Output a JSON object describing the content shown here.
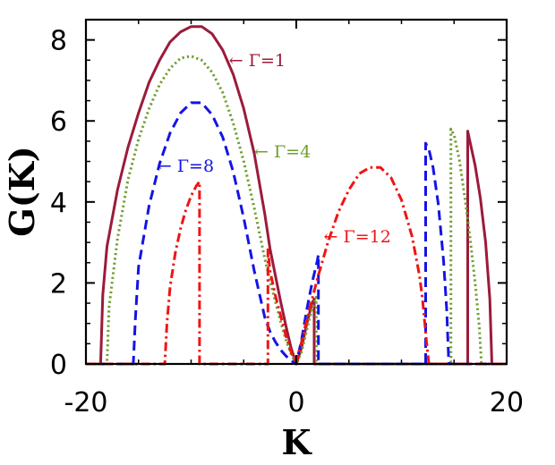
{
  "chart_data": {
    "type": "line",
    "xlabel": "K",
    "ylabel": "G(K)",
    "xlim": [
      -20,
      20
    ],
    "ylim": [
      0,
      8.5
    ],
    "x_ticks": [
      -20,
      0,
      20
    ],
    "x_tick_labels": [
      "-20",
      "0",
      "20"
    ],
    "y_ticks": [
      0,
      2,
      4,
      6,
      8
    ],
    "y_tick_labels": [
      "0",
      "2",
      "4",
      "6",
      "8"
    ],
    "grid": false,
    "legend": "none",
    "series": [
      {
        "name": "Γ=1",
        "color": "#9B1B3A",
        "style": "solid",
        "x": [
          -20,
          -18.6,
          -18.4,
          -18,
          -17,
          -16,
          -15,
          -14,
          -13,
          -12,
          -11,
          -10,
          -9,
          -8,
          -7,
          -6,
          -5,
          -4,
          -3,
          -2.5,
          -2,
          -1.5,
          -1,
          -0.5,
          0,
          0.5,
          1,
          1.5,
          1.7,
          1.7,
          2,
          3,
          6,
          10,
          15,
          16.3,
          16.3,
          16.5,
          17,
          17.5,
          18,
          18.4,
          18.6,
          20
        ],
        "y": [
          0,
          0,
          1.7,
          2.9,
          4.3,
          5.35,
          6.2,
          6.95,
          7.5,
          7.95,
          8.2,
          8.33,
          8.33,
          8.15,
          7.75,
          7.15,
          6.3,
          5.2,
          3.7,
          2.85,
          2.2,
          1.55,
          0.95,
          0.4,
          0,
          0.4,
          1.0,
          1.5,
          1.6,
          0,
          0,
          0,
          0,
          0,
          0,
          0,
          5.75,
          5.5,
          4.9,
          4.1,
          3.0,
          1.6,
          0,
          0
        ]
      },
      {
        "name": "Γ=4",
        "color": "#6E9E2E",
        "style": "dotted",
        "x": [
          -20,
          -18,
          -17.8,
          -17,
          -16,
          -15,
          -14,
          -13,
          -12,
          -11,
          -10,
          -9,
          -8,
          -7,
          -6,
          -5,
          -4,
          -3,
          -2.5,
          -2,
          -1.5,
          -1,
          -0.5,
          0,
          0.5,
          1,
          1.5,
          1.9,
          1.9,
          2.5,
          5,
          10,
          14.7,
          14.7,
          15,
          15.5,
          16,
          16.5,
          17,
          17.4,
          17.6,
          20
        ],
        "y": [
          0,
          0,
          1.4,
          3.1,
          4.55,
          5.55,
          6.3,
          6.9,
          7.3,
          7.55,
          7.6,
          7.5,
          7.2,
          6.7,
          5.95,
          5.0,
          3.85,
          2.6,
          2.05,
          1.55,
          1.05,
          0.6,
          0.25,
          0,
          0.3,
          0.85,
          1.35,
          1.65,
          0,
          0,
          0,
          0,
          0,
          5.8,
          5.65,
          5.05,
          4.15,
          3.15,
          2.0,
          0.9,
          0,
          0
        ]
      },
      {
        "name": "Γ=8",
        "color": "#1414E6",
        "style": "dashed",
        "x": [
          -20,
          -15.5,
          -15.3,
          -15,
          -14,
          -13,
          -12,
          -11,
          -10,
          -9,
          -8,
          -7,
          -6,
          -5,
          -4,
          -3,
          -2.5,
          -2,
          -1.5,
          -1,
          -0.5,
          0,
          0.5,
          1,
          1.5,
          2,
          2.1,
          2.1,
          3,
          6,
          10,
          12.3,
          12.3,
          12.6,
          13,
          13.5,
          14,
          14.3,
          14.5,
          20
        ],
        "y": [
          0,
          0,
          1.1,
          2.4,
          3.9,
          4.95,
          5.7,
          6.2,
          6.45,
          6.45,
          6.15,
          5.6,
          4.75,
          3.6,
          2.3,
          1.15,
          0.8,
          0.55,
          0.35,
          0.2,
          0.08,
          0,
          0.6,
          1.35,
          2.0,
          2.55,
          2.7,
          0,
          0,
          0,
          0,
          0,
          5.45,
          5.3,
          4.85,
          3.95,
          2.55,
          1.35,
          0,
          0
        ]
      },
      {
        "name": "Γ=12",
        "color": "#F01414",
        "style": "dashdot",
        "x": [
          -20,
          -12.5,
          -12.3,
          -12,
          -11.5,
          -11,
          -10.5,
          -10,
          -9.5,
          -9.2,
          -9.2,
          -3,
          -2.7,
          -2.7,
          -2.5,
          -2,
          -1.5,
          -1,
          -0.5,
          0,
          0.5,
          1,
          2,
          3,
          4,
          5,
          6,
          7,
          8,
          9,
          10,
          11,
          11.7,
          12,
          12.4,
          12.6,
          20
        ],
        "y": [
          0,
          0,
          1.0,
          1.9,
          2.75,
          3.35,
          3.8,
          4.15,
          4.4,
          4.5,
          0,
          0,
          0,
          2.85,
          2.3,
          1.7,
          1.2,
          0.7,
          0.3,
          0,
          0.55,
          1.1,
          2.1,
          3.0,
          3.75,
          4.3,
          4.7,
          4.85,
          4.85,
          4.6,
          4.05,
          3.15,
          2.2,
          1.6,
          0.5,
          0,
          0
        ]
      }
    ],
    "annotations": [
      {
        "text": "← Γ=1",
        "color": "#9B1B3A",
        "x": -6.4,
        "y": 7.35
      },
      {
        "text": "← Γ=4",
        "color": "#6E9E2E",
        "x": -4.0,
        "y": 5.1
      },
      {
        "text": "← Γ=8",
        "color": "#1414E6",
        "x": -13.2,
        "y": 4.75
      },
      {
        "text": "← Γ=12",
        "color": "#F01414",
        "x": 2.6,
        "y": 3.0
      }
    ]
  }
}
